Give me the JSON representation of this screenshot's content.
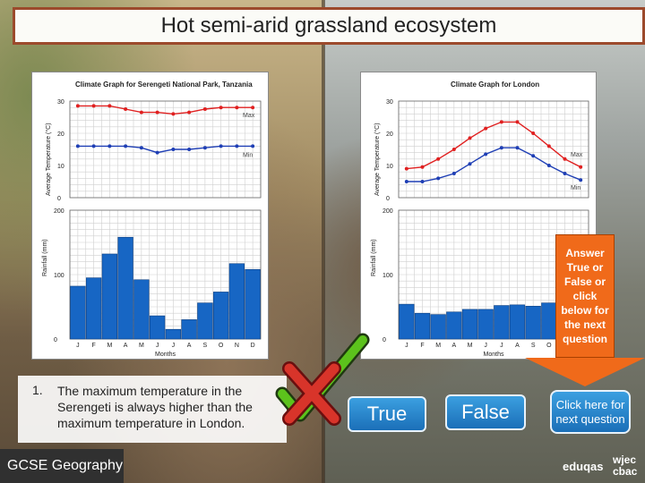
{
  "slide": {
    "title": "Hot semi-arid grassland ecosystem",
    "footer_label": "GCSE Geography",
    "logo_eduqas": "eduqas",
    "logo_wjec_line1": "wjec",
    "logo_wjec_line2": "cbac"
  },
  "question": {
    "number": "1.",
    "text": "The maximum temperature in the Serengeti is always higher than the maximum temperature in London."
  },
  "answer_prompt": "Answer True or False or click below for the next question",
  "buttons": {
    "true_label": "True",
    "false_label": "False",
    "next_label": "Click here for next question"
  },
  "colors": {
    "max_line": "#e02020",
    "min_line": "#1f3fb5",
    "bar_fill": "#1766c4",
    "accent_orange": "#f06a1a",
    "title_border": "#9c4a2c"
  },
  "chart_data": [
    {
      "id": "serengeti",
      "type": "line+bar",
      "title": "Climate Graph for Serengeti National Park, Tanzania",
      "temp_ylabel": "Average Temperature (°C)",
      "temp_ylim": [
        0,
        30
      ],
      "temp_ticks": [
        "0",
        "10",
        "20",
        "30"
      ],
      "rain_ylabel": "Rainfall (mm)",
      "rain_ylim": [
        0,
        200
      ],
      "rain_ticks": [
        "0",
        "100",
        "200"
      ],
      "xlabel": "Months",
      "categories": [
        "J",
        "F",
        "M",
        "A",
        "M",
        "J",
        "J",
        "A",
        "S",
        "O",
        "N",
        "D"
      ],
      "series_labels": {
        "max": "Max",
        "min": "Min"
      },
      "max_temp": [
        28.5,
        28.5,
        28.5,
        27.5,
        26.5,
        26.5,
        26,
        26.5,
        27.5,
        28,
        28,
        28
      ],
      "min_temp": [
        16,
        16,
        16,
        16,
        15.5,
        14,
        15,
        15,
        15.5,
        16,
        16,
        16
      ],
      "rainfall": [
        82,
        95,
        132,
        158,
        92,
        36,
        15,
        30,
        56,
        73,
        117,
        108
      ]
    },
    {
      "id": "london",
      "type": "line+bar",
      "title": "Climate Graph for London",
      "temp_ylabel": "Average Temperature (°C)",
      "temp_ylim": [
        0,
        30
      ],
      "temp_ticks": [
        "0",
        "10",
        "20",
        "30"
      ],
      "rain_ylabel": "Rainfall (mm)",
      "rain_ylim": [
        0,
        200
      ],
      "rain_ticks": [
        "0",
        "100",
        "200"
      ],
      "xlabel": "Months",
      "categories": [
        "J",
        "F",
        "M",
        "A",
        "M",
        "J",
        "J",
        "A",
        "S",
        "O",
        "N",
        "D"
      ],
      "series_labels": {
        "max": "Max",
        "min": "Min"
      },
      "max_temp": [
        9,
        9.5,
        12,
        15,
        18.5,
        21.5,
        23.5,
        23.5,
        20,
        16,
        12,
        9.5
      ],
      "min_temp": [
        5,
        5,
        6,
        7.5,
        10.5,
        13.5,
        15.5,
        15.5,
        13,
        10,
        7.5,
        5.5
      ],
      "rainfall": [
        54,
        40,
        38,
        42,
        46,
        46,
        52,
        53,
        51,
        56,
        59,
        59
      ]
    }
  ]
}
